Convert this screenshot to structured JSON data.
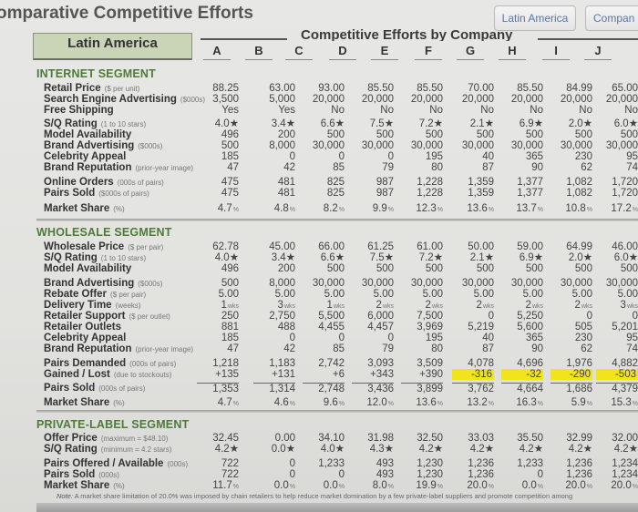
{
  "page": {
    "title": "omparative Competitive Efforts",
    "region_button": "Latin America",
    "company_button": "Compan"
  },
  "header": {
    "region_label": "Latin America",
    "section_title": "Competitive Efforts by Company",
    "companies": [
      "A",
      "B",
      "C",
      "D",
      "E",
      "F",
      "G",
      "H",
      "I",
      "J"
    ]
  },
  "internet": {
    "title": "INTERNET SEGMENT",
    "rows": [
      {
        "label": "Retail Price",
        "unit": "($ per unit)",
        "values": [
          "88.25",
          "63.00",
          "93.00",
          "85.50",
          "85.50",
          "70.00",
          "85.50",
          "84.99",
          "65.00",
          "91.00"
        ]
      },
      {
        "label": "Search Engine Advertising",
        "unit": "($000s)",
        "values": [
          "3,500",
          "5,000",
          "20,000",
          "20,000",
          "20,000",
          "20,000",
          "20,000",
          "20,000",
          "20,000",
          "6,000"
        ]
      },
      {
        "label": "Free Shipping",
        "unit": "",
        "values": [
          "Yes",
          "Yes",
          "No",
          "No",
          "No",
          "No",
          "No",
          "No",
          "No",
          "Yes"
        ]
      },
      {
        "label": "S/Q Rating",
        "unit": "(1 to 10 stars)",
        "values": [
          "4.0★",
          "3.4★",
          "6.6★",
          "7.5★",
          "7.2★",
          "2.1★",
          "6.9★",
          "2.0★",
          "6.0★",
          "6.5★"
        ]
      },
      {
        "label": "Model Availability",
        "unit": "",
        "values": [
          "496",
          "200",
          "500",
          "500",
          "500",
          "500",
          "500",
          "500",
          "500",
          "500"
        ]
      },
      {
        "label": "Brand Advertising",
        "unit": "($000s)",
        "values": [
          "500",
          "8,000",
          "30,000",
          "30,000",
          "30,000",
          "30,000",
          "30,000",
          "30,000",
          "30,000",
          "10,000"
        ]
      },
      {
        "label": "Celebrity Appeal",
        "unit": "",
        "values": [
          "185",
          "0",
          "0",
          "0",
          "195",
          "40",
          "365",
          "230",
          "95",
          "0"
        ]
      },
      {
        "label": "Brand Reputation",
        "unit": "(prior-year image)",
        "values": [
          "47",
          "42",
          "85",
          "79",
          "80",
          "87",
          "90",
          "62",
          "74",
          "57"
        ]
      },
      {
        "label": "Online Orders",
        "unit": "(000s of pairs)",
        "values": [
          "475",
          "481",
          "825",
          "987",
          "1,228",
          "1,359",
          "1,377",
          "1,082",
          "1,720",
          "485"
        ]
      },
      {
        "label": "Pairs Sold",
        "unit": "($000s of pairs)",
        "values": [
          "475",
          "481",
          "825",
          "987",
          "1,228",
          "1,359",
          "1,377",
          "1,082",
          "1,720",
          "485"
        ]
      },
      {
        "label": "Market Share",
        "unit": "(%)",
        "values": [
          "4.7",
          "4.8",
          "8.2",
          "9.9",
          "12.3",
          "13.6",
          "13.7",
          "10.8",
          "17.2",
          "4.8"
        ],
        "suffix": "%"
      }
    ]
  },
  "wholesale": {
    "title": "WHOLESALE SEGMENT",
    "rows": [
      {
        "label": "Wholesale Price",
        "unit": "($ per pair)",
        "values": [
          "62.78",
          "45.00",
          "66.00",
          "61.25",
          "61.00",
          "50.00",
          "59.00",
          "64.99",
          "46.00",
          "65.00"
        ]
      },
      {
        "label": "S/Q Rating",
        "unit": "(1 to 10 stars)",
        "values": [
          "4.0★",
          "3.4★",
          "6.6★",
          "7.5★",
          "7.2★",
          "2.1★",
          "6.9★",
          "2.0★",
          "6.0★",
          "6.5★"
        ]
      },
      {
        "label": "Model Availability",
        "unit": "",
        "values": [
          "496",
          "200",
          "500",
          "500",
          "500",
          "500",
          "500",
          "500",
          "500",
          "500"
        ]
      },
      {
        "label": "Brand Advertising",
        "unit": "($000s)",
        "values": [
          "500",
          "8,000",
          "30,000",
          "30,000",
          "30,000",
          "30,000",
          "30,000",
          "30,000",
          "30,000",
          "10,000"
        ]
      },
      {
        "label": "Rebate Offer",
        "unit": "($ per pair)",
        "values": [
          "5.00",
          "5.00",
          "5.00",
          "5.00",
          "5.00",
          "5.00",
          "5.00",
          "5.00",
          "5.00",
          "4.00"
        ]
      },
      {
        "label": "Delivery Time",
        "unit": "(weeks)",
        "values": [
          "1",
          "3",
          "1",
          "2",
          "2",
          "2",
          "2",
          "2",
          "3",
          "1"
        ],
        "suffix": "wks"
      },
      {
        "label": "Retailer Support",
        "unit": "($ per outlet)",
        "values": [
          "250",
          "2,750",
          "5,500",
          "6,000",
          "7,500",
          "0",
          "5,250",
          "0",
          "0",
          "3,000"
        ]
      },
      {
        "label": "Retailer Outlets",
        "unit": "",
        "values": [
          "881",
          "488",
          "4,455",
          "4,457",
          "3,969",
          "5,219",
          "5,600",
          "505",
          "5,201",
          "949"
        ]
      },
      {
        "label": "Celebrity Appeal",
        "unit": "",
        "values": [
          "185",
          "0",
          "0",
          "0",
          "195",
          "40",
          "365",
          "230",
          "95",
          "0"
        ]
      },
      {
        "label": "Brand Reputation",
        "unit": "(prior-year image)",
        "values": [
          "47",
          "42",
          "85",
          "79",
          "80",
          "87",
          "90",
          "62",
          "74",
          "57"
        ]
      },
      {
        "label": "Pairs Demanded",
        "unit": "(000s of pairs)",
        "values": [
          "1,218",
          "1,183",
          "2,742",
          "3,093",
          "3,509",
          "4,078",
          "4,696",
          "1,976",
          "4,882",
          "1,223"
        ]
      },
      {
        "label": "Gained / Lost",
        "unit": "(due to stockouts)",
        "values": [
          "+135",
          "+131",
          "+6",
          "+343",
          "+390",
          "-316",
          "-32",
          "-290",
          "-503",
          "+136"
        ],
        "highlight": [
          false,
          false,
          false,
          false,
          false,
          true,
          true,
          true,
          true,
          false
        ]
      },
      {
        "label": "Pairs Sold",
        "unit": "(000s of pairs)",
        "values": [
          "1,353",
          "1,314",
          "2,748",
          "3,436",
          "3,899",
          "3,762",
          "4,664",
          "1,686",
          "4,379",
          "1,359"
        ]
      },
      {
        "label": "Market Share",
        "unit": "(%)",
        "values": [
          "4.7",
          "4.6",
          "9.6",
          "12.0",
          "13.6",
          "13.2",
          "16.3",
          "5.9",
          "15.3",
          "4.8"
        ],
        "suffix": "%"
      }
    ]
  },
  "private_label": {
    "title": "PRIVATE-LABEL SEGMENT",
    "rows": [
      {
        "label": "Offer Price",
        "unit": "(maximum = $48.10)",
        "values": [
          "32.45",
          "0.00",
          "34.10",
          "31.98",
          "32.50",
          "33.03",
          "35.50",
          "32.99",
          "32.00",
          "0.00"
        ]
      },
      {
        "label": "S/Q Rating",
        "unit": "(minimum = 4.2 stars)",
        "values": [
          "4.2★",
          "0.0★",
          "4.0★",
          "4.3★",
          "4.2★",
          "4.2★",
          "4.2★",
          "4.2★",
          "4.2★",
          "0.0★"
        ]
      },
      {
        "label": "Pairs Offered / Available",
        "unit": "(000s)",
        "values": [
          "722",
          "0",
          "1,233",
          "493",
          "1,230",
          "1,236",
          "1,233",
          "1,236",
          "1,234",
          "0"
        ]
      },
      {
        "label": "Pairs Sold",
        "unit": "(000s)",
        "values": [
          "722",
          "0",
          "0",
          "493",
          "1,230",
          "1,236",
          "0",
          "1,236",
          "1,234",
          "0"
        ]
      },
      {
        "label": "Market Share",
        "unit": "(%)",
        "values": [
          "11.7",
          "0.0",
          "0.0",
          "8.0",
          "19.9",
          "20.0",
          "0.0",
          "20.0",
          "20.0",
          "0.0"
        ],
        "suffix": "%"
      }
    ],
    "note_label": "Note:",
    "note": "A market share limitation of 20.0% was imposed by chain retailers to help reduce market domination by a few private-label suppliers and promote competition among"
  },
  "colors": {
    "segment_title": "#4e7a3a",
    "region_box": "#c9d5b6",
    "highlight": "#f1e41c",
    "button_text": "#5a77a5"
  }
}
